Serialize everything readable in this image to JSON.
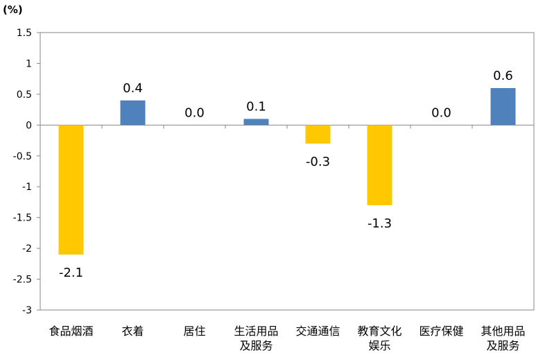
{
  "chart_data": {
    "type": "bar",
    "title": "",
    "ylabel": "(%)",
    "xlabel": "",
    "categories": [
      [
        "食品烟酒"
      ],
      [
        "衣着"
      ],
      [
        "居住"
      ],
      [
        "生活用品",
        "及服务"
      ],
      [
        "交通通信"
      ],
      [
        "教育文化",
        "娱乐"
      ],
      [
        "医疗保健"
      ],
      [
        "其他用品",
        "及服务"
      ]
    ],
    "values": [
      -2.1,
      0.4,
      0.0,
      0.1,
      -0.3,
      -1.3,
      0.0,
      0.6
    ],
    "data_labels": [
      "-2.1",
      "0.4",
      "0.0",
      "0.1",
      "-0.3",
      "-1.3",
      "0.0",
      "0.6"
    ],
    "ylim": [
      -3,
      1.5
    ],
    "yticks": [
      "1.5",
      "1",
      "0.5",
      "0",
      "-0.5",
      "-1",
      "-1.5",
      "-2",
      "-2.5",
      "-3"
    ],
    "ytick_values": [
      1.5,
      1,
      0.5,
      0,
      -0.5,
      -1,
      -1.5,
      -2,
      -2.5,
      -3
    ],
    "grid": false,
    "legend": "none",
    "colors": {
      "positive": "#4F81BD",
      "negative": "#FFC800",
      "axis": "#868686"
    }
  }
}
